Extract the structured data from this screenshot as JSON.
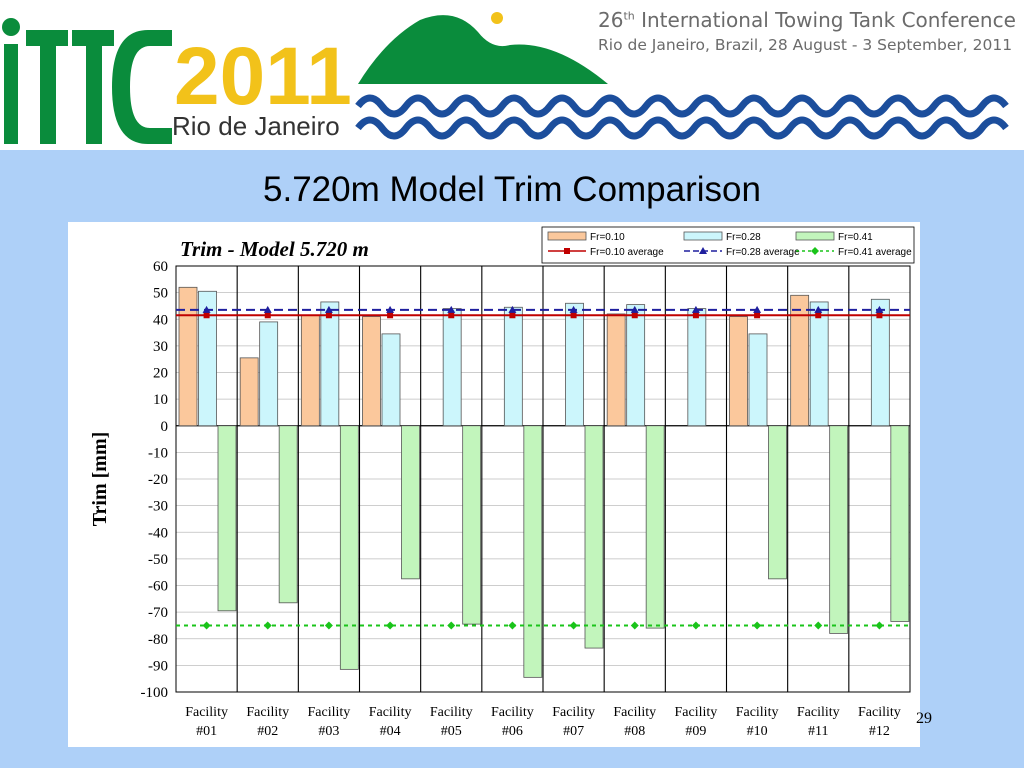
{
  "banner": {
    "logo_text": "ITTC",
    "logo_year": "2011",
    "logo_city": "Rio de Janeiro",
    "conference_ordinal": "26",
    "conference_ordinal_suffix": "th",
    "conference_name": " International Towing Tank Conference",
    "conference_details": "Rio de Janeiro, Brazil, 28 August - 3 September, 2011",
    "colors": {
      "green": "#0a8c3c",
      "yellow": "#f2c21a",
      "blue": "#1c4e9c"
    }
  },
  "slide": {
    "title": "5.720m Model Trim Comparison",
    "page_number": "29"
  },
  "chart_data": {
    "type": "bar",
    "title": "Trim - Model 5.720 m",
    "ylabel": "Trim [mm]",
    "xlabel": "",
    "ylim": [
      -100,
      60
    ],
    "yticks": [
      60,
      50,
      40,
      30,
      20,
      10,
      0,
      -10,
      -20,
      -30,
      -40,
      -50,
      -60,
      -70,
      -80,
      -90,
      -100
    ],
    "grid": true,
    "legend_position": "top-right",
    "categories": [
      [
        "Facility",
        "#01"
      ],
      [
        "Facility",
        "#02"
      ],
      [
        "Facility",
        "#03"
      ],
      [
        "Facility",
        "#04"
      ],
      [
        "Facility",
        "#05"
      ],
      [
        "Facility",
        "#06"
      ],
      [
        "Facility",
        "#07"
      ],
      [
        "Facility",
        "#08"
      ],
      [
        "Facility",
        "#09"
      ],
      [
        "Facility",
        "#10"
      ],
      [
        "Facility",
        "#11"
      ],
      [
        "Facility",
        "#12"
      ]
    ],
    "series": [
      {
        "name": "Fr=0.10",
        "color": "#fbc89c",
        "values": [
          52,
          25.5,
          41.5,
          41,
          null,
          null,
          null,
          42,
          null,
          41,
          49,
          null
        ]
      },
      {
        "name": "Fr=0.28",
        "color": "#ccf6fc",
        "values": [
          50.5,
          39,
          46.5,
          34.5,
          44,
          44.5,
          46,
          45.5,
          44,
          34.5,
          46.5,
          47.5
        ]
      },
      {
        "name": "Fr=0.41",
        "color": "#c2f5bc",
        "values": [
          -69.5,
          -66.5,
          -91.5,
          -57.5,
          -74.5,
          -94.5,
          -83.5,
          -76,
          null,
          -57.5,
          -78,
          -73.5
        ]
      }
    ],
    "averages": [
      {
        "name": "Fr=0.10 average",
        "value": 41.5,
        "color": "#c00000",
        "marker": "square",
        "dash": "solid"
      },
      {
        "name": "Fr=0.28 average",
        "value": 43.5,
        "color": "#1f1f9e",
        "marker": "triangle",
        "dash": "dashed"
      },
      {
        "name": "Fr=0.41 average",
        "value": -75,
        "color": "#1ac41a",
        "marker": "diamond",
        "dash": "dotted"
      }
    ]
  }
}
